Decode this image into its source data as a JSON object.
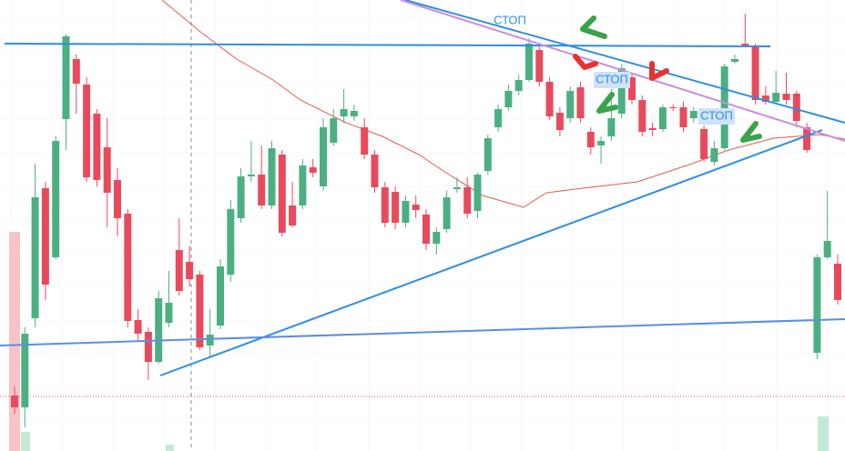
{
  "chart_data": {
    "type": "candlestick",
    "annotations": [
      "СТОП",
      "СТОП",
      "СТОП"
    ],
    "up_color": "#4caf82",
    "down_color": "#e84a5c",
    "ylim": [
      4,
      500
    ],
    "open": [
      65,
      52,
      150,
      293,
      217,
      369,
      435,
      407,
      375,
      338,
      302,
      265,
      148,
      135,
      102,
      145,
      225,
      212,
      198,
      120,
      142,
      198,
      260,
      306,
      308,
      274,
      330,
      274,
      274,
      316,
      295,
      343,
      372,
      372,
      360,
      330,
      294,
      289,
      255,
      275,
      264,
      232,
      248,
      292,
      294,
      268,
      312,
      360,
      382,
      400,
      412,
      445,
      410,
      376,
      370,
      404,
      355,
      340,
      350,
      375,
      415,
      390,
      359,
      358,
      382,
      382,
      370,
      358,
      322,
      337,
      432,
      452,
      450,
      395,
      388,
      397,
      397,
      360,
      112,
      217,
      210
    ],
    "high": [
      75,
      140,
      320,
      300,
      350,
      462,
      440,
      415,
      380,
      370,
      315,
      270,
      160,
      140,
      180,
      202,
      260,
      230,
      202,
      160,
      215,
      280,
      315,
      345,
      340,
      345,
      335,
      300,
      325,
      325,
      370,
      380,
      402,
      385,
      370,
      335,
      300,
      295,
      285,
      285,
      270,
      250,
      290,
      305,
      305,
      310,
      352,
      385,
      407,
      418,
      458,
      450,
      415,
      382,
      405,
      410,
      360,
      350,
      402,
      430,
      420,
      395,
      365,
      385,
      385,
      388,
      382,
      362,
      345,
      430,
      440,
      485,
      452,
      405,
      422,
      420,
      400,
      365,
      220,
      290,
      220
    ],
    "low": [
      45,
      30,
      140,
      170,
      215,
      335,
      375,
      300,
      295,
      250,
      240,
      140,
      125,
      82,
      100,
      140,
      175,
      185,
      115,
      108,
      138,
      190,
      255,
      300,
      270,
      270,
      240,
      250,
      270,
      305,
      290,
      340,
      365,
      367,
      325,
      288,
      250,
      248,
      250,
      260,
      225,
      220,
      244,
      288,
      260,
      260,
      308,
      355,
      378,
      395,
      410,
      405,
      368,
      350,
      365,
      365,
      330,
      320,
      345,
      370,
      385,
      350,
      350,
      355,
      378,
      355,
      365,
      322,
      318,
      335,
      430,
      448,
      385,
      385,
      385,
      385,
      360,
      332,
      105,
      215,
      165
    ],
    "close": [
      52,
      133,
      283,
      187,
      345,
      460,
      408,
      305,
      302,
      288,
      260,
      147,
      133,
      102,
      172,
      167,
      180,
      193,
      118,
      132,
      207,
      270,
      306,
      308,
      274,
      337,
      244,
      252,
      318,
      310,
      360,
      370,
      380,
      378,
      330,
      294,
      255,
      255,
      279,
      269,
      232,
      245,
      283,
      294,
      265,
      308,
      348,
      380,
      400,
      412,
      452,
      410,
      372,
      357,
      400,
      370,
      338,
      345,
      370,
      425,
      390,
      355,
      357,
      382,
      381,
      360,
      378,
      325,
      337,
      427,
      435,
      450,
      390,
      388,
      398,
      390,
      367,
      335,
      217,
      235,
      170
    ]
  }
}
